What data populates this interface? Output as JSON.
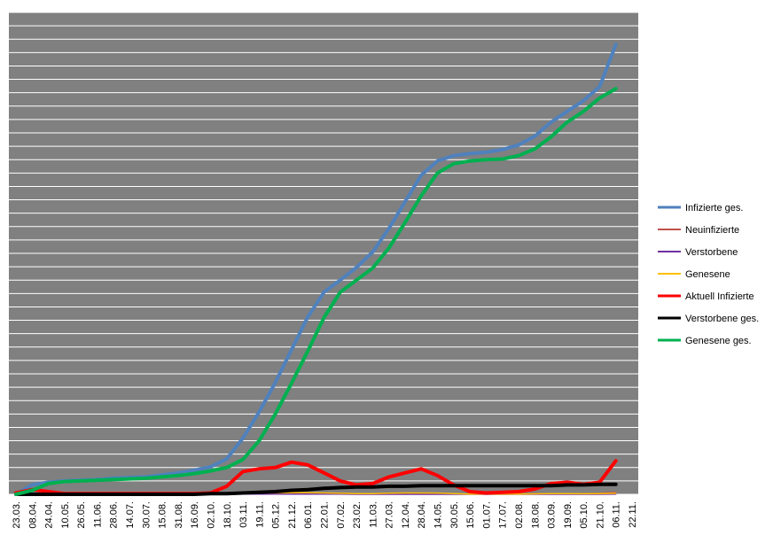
{
  "chart_data": {
    "type": "line",
    "categories": [
      "23.03.",
      "08.04.",
      "24.04.",
      "10.05.",
      "26.05.",
      "11.06.",
      "28.06.",
      "14.07.",
      "30.07.",
      "15.08.",
      "31.08.",
      "16.09.",
      "02.10.",
      "18.10.",
      "03.11.",
      "19.11.",
      "05.12.",
      "21.12.",
      "06.01.",
      "22.01.",
      "07.02.",
      "23.02.",
      "11.03.",
      "27.03.",
      "12.04.",
      "28.04.",
      "14.05.",
      "30.05.",
      "15.06.",
      "01.07.",
      "17.07.",
      "02.08.",
      "18.08.",
      "03.09.",
      "19.09.",
      "05.10.",
      "21.10.",
      "06.11.",
      "22.11."
    ],
    "series": [
      {
        "name": "Infizierte ges.",
        "color": "#4f81bd",
        "values": [
          0,
          0.7,
          0.9,
          1.0,
          1.05,
          1.1,
          1.2,
          1.25,
          1.3,
          1.45,
          1.6,
          1.8,
          2.05,
          2.65,
          4.2,
          6.15,
          8.35,
          10.8,
          13.25,
          15.1,
          16.0,
          16.95,
          18.1,
          19.85,
          21.85,
          23.85,
          24.9,
          25.3,
          25.45,
          25.55,
          25.75,
          26.1,
          26.75,
          27.8,
          28.6,
          29.4,
          30.45,
          33.6,
          null
        ]
      },
      {
        "name": "Neuinfizierte",
        "color": "#c0504d",
        "values": [
          0,
          0.02,
          0.01,
          0,
          0,
          0,
          0,
          0,
          0,
          0,
          0,
          0,
          0.01,
          0.03,
          0.08,
          0.09,
          0.09,
          0.1,
          0.1,
          0.06,
          0.04,
          0.04,
          0.05,
          0.08,
          0.09,
          0.08,
          0.05,
          0.02,
          0.01,
          0.01,
          0.01,
          0.02,
          0.04,
          0.05,
          0.04,
          0.04,
          0.07,
          0.15,
          null
        ]
      },
      {
        "name": "Verstorbene",
        "color": "#7030a0",
        "values": [
          0,
          0,
          0,
          0,
          0,
          0,
          0,
          0,
          0,
          0,
          0,
          0,
          0,
          0,
          0.01,
          0.01,
          0.01,
          0.01,
          0.01,
          0.01,
          0.01,
          0,
          0,
          0,
          0,
          0,
          0,
          0,
          0,
          0,
          0,
          0,
          0,
          0,
          0,
          0,
          0,
          0.01,
          null
        ]
      },
      {
        "name": "Genesene",
        "color": "#ffc000",
        "values": [
          0,
          0.03,
          0.03,
          0.01,
          0,
          0,
          0,
          0,
          0,
          0,
          0,
          0,
          0.01,
          0.02,
          0.06,
          0.1,
          0.1,
          0.12,
          0.12,
          0.1,
          0.08,
          0.05,
          0.05,
          0.08,
          0.1,
          0.1,
          0.09,
          0.05,
          0.02,
          0.01,
          0.01,
          0.01,
          0.03,
          0.05,
          0.05,
          0.04,
          0.05,
          0.08,
          null
        ]
      },
      {
        "name": "Aktuell Infizierte",
        "color": "#ff0000",
        "values": [
          0.1,
          0.35,
          0.2,
          0.05,
          0.05,
          0.05,
          0.05,
          0.05,
          0.05,
          0.05,
          0.05,
          0.05,
          0.1,
          0.6,
          1.7,
          1.9,
          2.0,
          2.4,
          2.2,
          1.6,
          1.0,
          0.7,
          0.8,
          1.3,
          1.6,
          1.9,
          1.4,
          0.7,
          0.2,
          0.1,
          0.15,
          0.2,
          0.4,
          0.8,
          0.9,
          0.75,
          0.9,
          2.5,
          null
        ]
      },
      {
        "name": "Verstorbene ges.",
        "color": "#000000",
        "values": [
          0,
          0,
          0,
          0,
          0,
          0,
          0,
          0,
          0,
          0,
          0,
          0,
          0.05,
          0.05,
          0.1,
          0.15,
          0.2,
          0.3,
          0.35,
          0.45,
          0.5,
          0.55,
          0.55,
          0.6,
          0.6,
          0.65,
          0.65,
          0.65,
          0.65,
          0.65,
          0.65,
          0.65,
          0.65,
          0.65,
          0.7,
          0.7,
          0.75,
          0.75,
          null
        ]
      },
      {
        "name": "Genesene ges.",
        "color": "#00b050",
        "values": [
          0,
          0.3,
          0.8,
          0.95,
          1.0,
          1.05,
          1.1,
          1.15,
          1.2,
          1.3,
          1.4,
          1.55,
          1.75,
          2.0,
          2.6,
          4.0,
          6.0,
          8.3,
          10.7,
          13.2,
          15.1,
          16.0,
          16.9,
          18.4,
          20.3,
          22.3,
          24.0,
          24.7,
          24.9,
          25.0,
          25.05,
          25.3,
          25.8,
          26.7,
          27.8,
          28.6,
          29.6,
          30.3,
          null
        ]
      }
    ],
    "ylim": [
      0,
      36
    ],
    "yticks": [
      0,
      1,
      2,
      3,
      4,
      5,
      6,
      7,
      8,
      9,
      10,
      11,
      12,
      13,
      14,
      15,
      16,
      17,
      18,
      19,
      20,
      21,
      22,
      23,
      24,
      25,
      26,
      27,
      28,
      29,
      30,
      31,
      32,
      33,
      34,
      35,
      36
    ],
    "grid": true,
    "legend": "right"
  }
}
